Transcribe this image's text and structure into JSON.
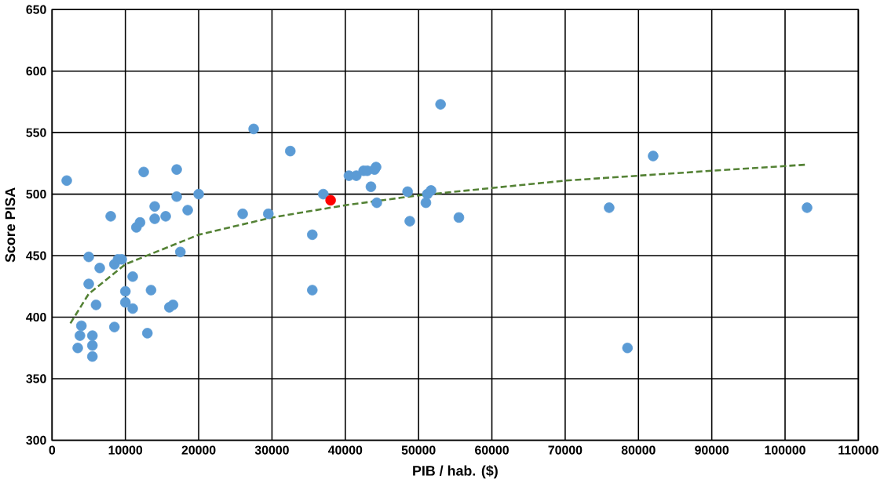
{
  "chart_data": {
    "type": "scatter",
    "xlabel": "PIB / hab. ($)",
    "ylabel": "Score PISA",
    "xlim": [
      0,
      110000
    ],
    "ylim": [
      300,
      650
    ],
    "xticks": [
      0,
      10000,
      20000,
      30000,
      40000,
      50000,
      60000,
      70000,
      80000,
      90000,
      100000,
      110000
    ],
    "yticks": [
      300,
      350,
      400,
      450,
      500,
      550,
      600,
      650
    ],
    "grid": true,
    "marker": "circle",
    "series": [
      {
        "color": "#5b9bd5",
        "x": [
          2000,
          3500,
          4000,
          3800,
          5000,
          5000,
          5500,
          5500,
          5500,
          6000,
          6500,
          8000,
          8500,
          8500,
          9000,
          9500,
          10000,
          10000,
          11000,
          11000,
          11500,
          12000,
          12500,
          13000,
          13500,
          14000,
          14000,
          15500,
          16000,
          16500,
          17000,
          17000,
          17500,
          18500,
          20000,
          26000,
          27500,
          29500,
          32500,
          35500,
          35500,
          37000,
          40500,
          41500,
          42500,
          43000,
          43500,
          44000,
          44200,
          44300,
          48500,
          48800,
          51000,
          51200,
          51700,
          53000,
          55500,
          76000,
          78500,
          82000,
          103000
        ],
        "values": [
          511,
          375,
          393,
          385,
          449,
          427,
          385,
          368,
          377,
          410,
          440,
          482,
          392,
          443,
          447,
          447,
          412,
          421,
          407,
          433,
          473,
          477,
          518,
          387,
          422,
          490,
          480,
          482,
          408,
          410,
          520,
          498,
          453,
          487,
          500,
          484,
          553,
          484,
          535,
          422,
          467,
          500,
          515,
          515,
          519,
          519,
          506,
          520,
          522,
          493,
          502,
          478,
          493,
          500,
          503,
          573,
          481,
          489,
          375,
          531,
          489
        ]
      },
      {
        "color": "#ff0000",
        "x": [
          38000
        ],
        "values": [
          495
        ]
      },
      {
        "type": "line",
        "color": "#548235",
        "line_style": "dashed",
        "marker": "none",
        "x": [
          2500,
          5000,
          10000,
          20000,
          30000,
          40000,
          50000,
          60000,
          70000,
          80000,
          90000,
          103000
        ],
        "values": [
          395,
          419,
          443,
          467,
          481,
          491,
          499,
          505,
          511,
          515,
          519,
          524
        ]
      }
    ]
  }
}
